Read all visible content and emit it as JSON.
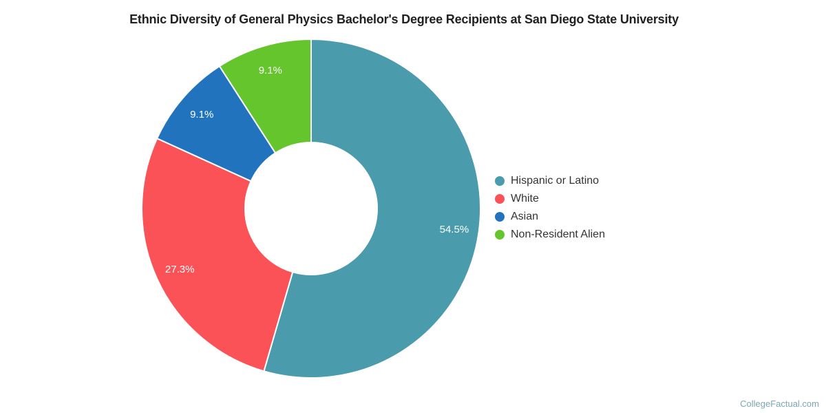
{
  "title": {
    "text": "Ethnic Diversity of General Physics Bachelor's Degree Recipients at San Diego State University"
  },
  "watermark": {
    "text": "CollegeFactual.com"
  },
  "colors": {
    "title_text": "#212121",
    "legend_text": "#333333",
    "slice_label_text": "#ffffff",
    "slice_border": "#ffffff",
    "watermark_text": "#7ba7b4",
    "background": "#ffffff"
  },
  "chart_data": {
    "type": "pie",
    "subtype": "donut",
    "title": "Ethnic Diversity of General Physics Bachelor's Degree Recipients at San Diego State University",
    "units": "percent",
    "total": 100,
    "start_angle_deg": 0,
    "direction": "clockwise",
    "inner_radius_ratio": 0.39,
    "legend_position": "right",
    "series": [
      {
        "name": "Hispanic or Latino",
        "value": 54.5,
        "label": "54.5%",
        "color": "#4a9bab"
      },
      {
        "name": "White",
        "value": 27.3,
        "label": "27.3%",
        "color": "#fb5257"
      },
      {
        "name": "Asian",
        "value": 9.1,
        "label": "9.1%",
        "color": "#2173bd"
      },
      {
        "name": "Non-Resident Alien",
        "value": 9.1,
        "label": "9.1%",
        "color": "#65c52d"
      }
    ]
  }
}
